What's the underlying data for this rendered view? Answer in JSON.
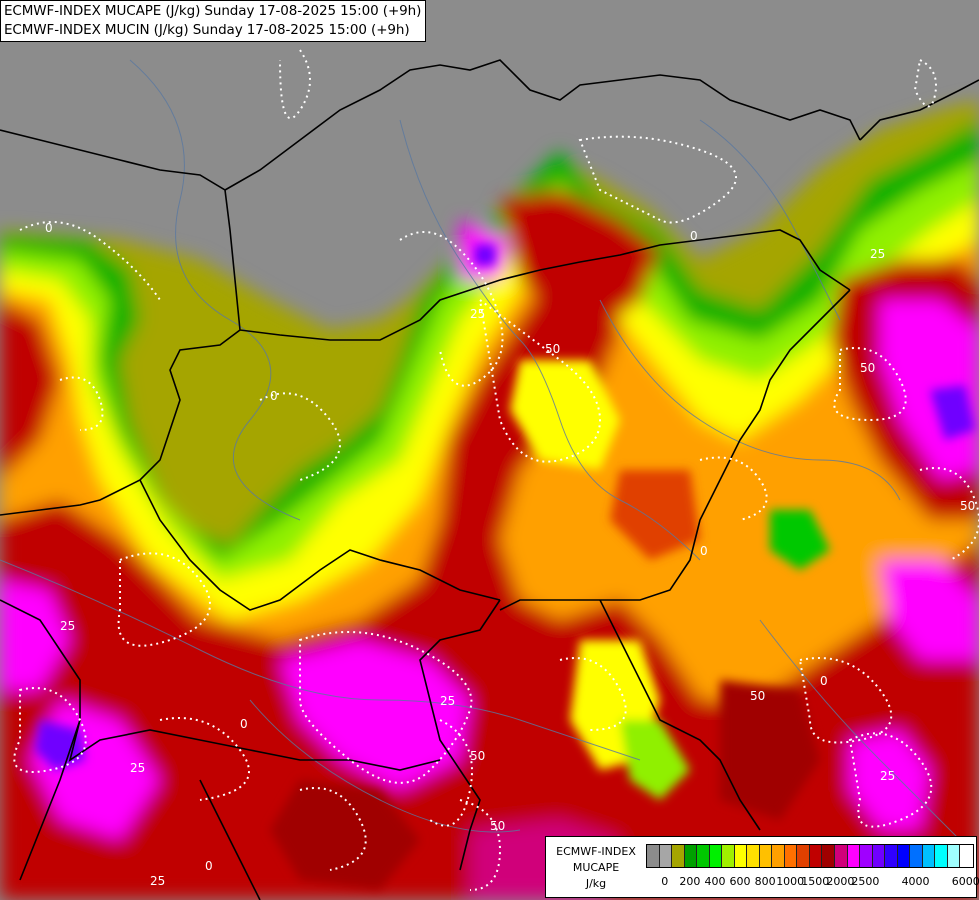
{
  "header": {
    "line1": "ECMWF-INDEX MUCAPE (J/kg) Sunday 17-08-2025 15:00 (+9h)",
    "line2": "ECMWF-INDEX MUCIN (J/kg) Sunday 17-08-2025 15:00 (+9h)"
  },
  "legend": {
    "title1": "ECMWF-INDEX",
    "title2": "MUCAPE",
    "units": "J/kg",
    "colors": [
      "#8c8c8c",
      "#a6a6a6",
      "#a5a500",
      "#00a000",
      "#00c800",
      "#00f000",
      "#a0f000",
      "#ffff00",
      "#ffe000",
      "#ffc000",
      "#ffa000",
      "#ff7000",
      "#e04000",
      "#c00000",
      "#a00000",
      "#d0007a",
      "#ff00ff",
      "#a000ff",
      "#7000ff",
      "#3000ff",
      "#0000ff",
      "#0070ff",
      "#00c0ff",
      "#00ffff",
      "#a0ffff",
      "#ffffff"
    ],
    "tick_labels": [
      "0",
      "200",
      "400",
      "600",
      "800",
      "1000",
      "1500",
      "2000",
      "2500",
      "4000",
      "6000"
    ]
  },
  "map": {
    "cin_contour_labels": [
      "0",
      "25",
      "50",
      "25",
      "0",
      "50",
      "0",
      "25",
      "50",
      "25",
      "0",
      "50",
      "0",
      "25",
      "0",
      "25",
      "50",
      "50",
      "25",
      "0"
    ]
  }
}
